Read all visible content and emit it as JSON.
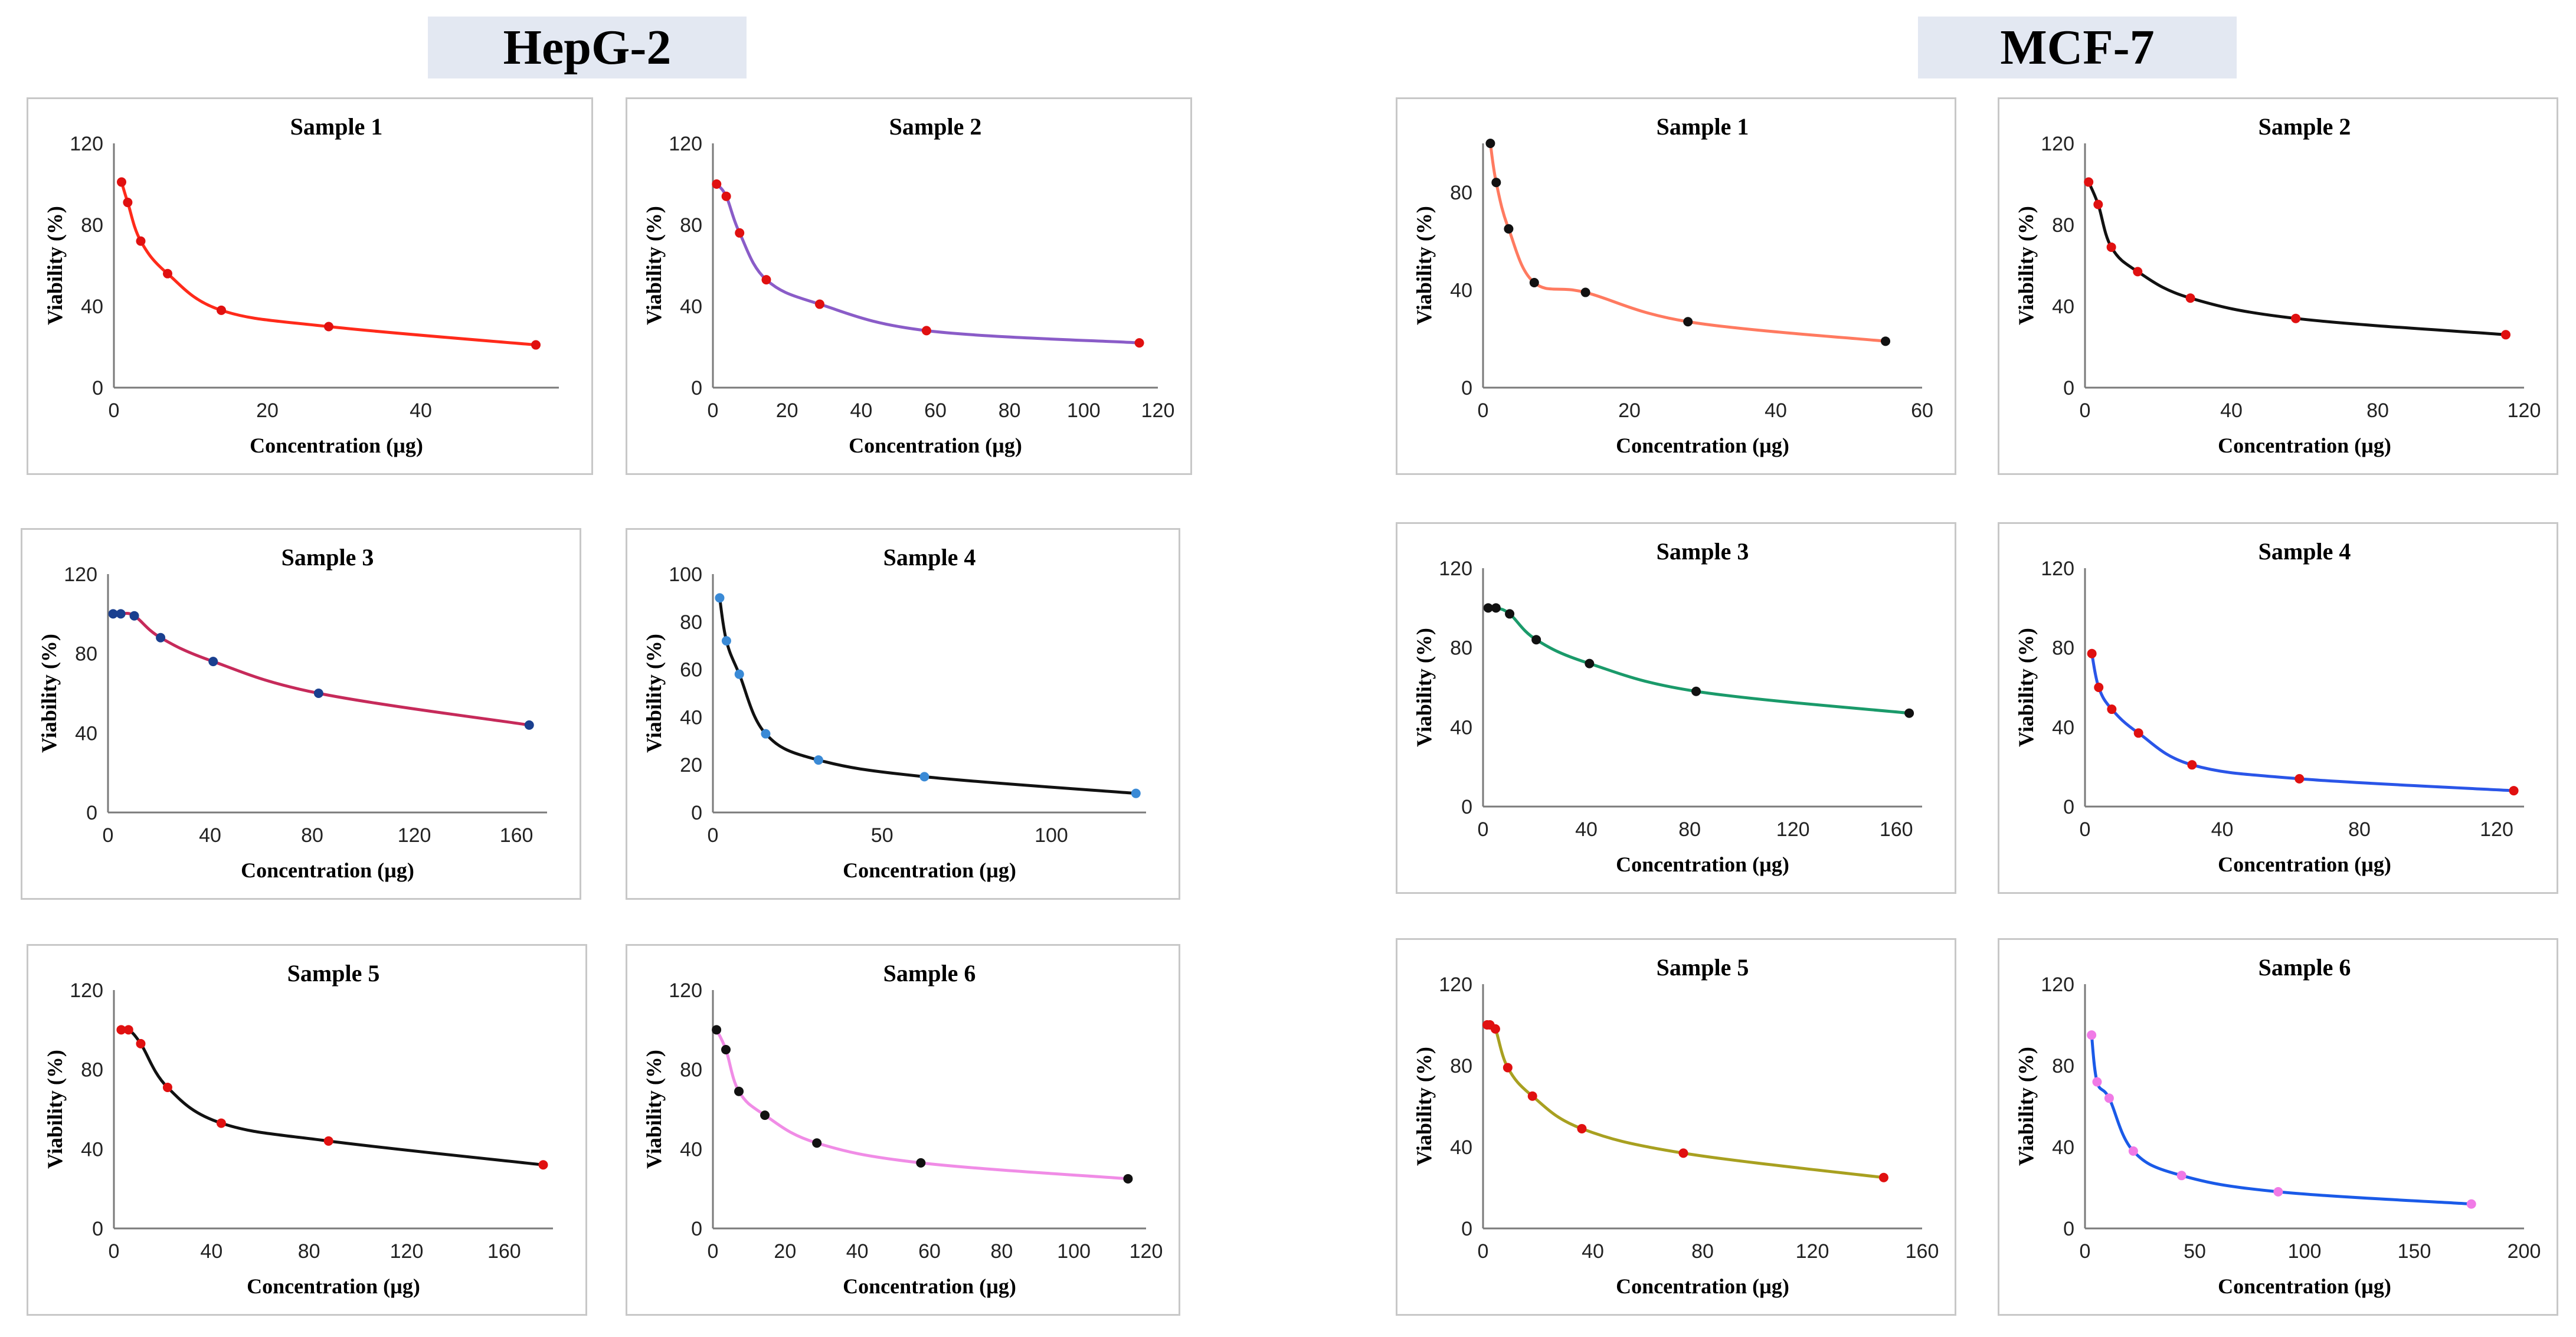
{
  "groups": {
    "left": "HepG-2",
    "right": "MCF-7"
  },
  "chart_data": [
    {
      "id": "h1",
      "type": "line",
      "group": "HepG-2",
      "title": "Sample 1",
      "xlabel": "Concentration (µg)",
      "ylabel": "Viability (%)",
      "xlim": [
        0,
        58
      ],
      "ylim": [
        0,
        120
      ],
      "xticks": [
        0,
        20,
        40
      ],
      "yticks": [
        0,
        40,
        80,
        120
      ],
      "x": [
        1,
        1.8,
        3.5,
        7,
        14,
        28,
        55
      ],
      "y": [
        101,
        91,
        72,
        56,
        38,
        30,
        21
      ],
      "line_color": "#ff2a1a",
      "marker_color": "#e01010"
    },
    {
      "id": "h2",
      "type": "line",
      "group": "HepG-2",
      "title": "Sample 2",
      "xlabel": "Concentration (µg)",
      "ylabel": "Viability (%)",
      "xlim": [
        0,
        120
      ],
      "ylim": [
        0,
        120
      ],
      "xticks": [
        0,
        20,
        40,
        60,
        80,
        100,
        120
      ],
      "yticks": [
        0,
        40,
        80,
        120
      ],
      "x": [
        1,
        3.6,
        7.2,
        14.4,
        28.8,
        57.6,
        115
      ],
      "y": [
        100,
        94,
        76,
        53,
        41,
        28,
        22
      ],
      "line_color": "#8a5cc8",
      "marker_color": "#e01010"
    },
    {
      "id": "h3",
      "type": "line",
      "group": "HepG-2",
      "title": "Sample 3",
      "xlabel": "Concentration (µg)",
      "ylabel": "Viability (%)",
      "xlim": [
        0,
        172
      ],
      "ylim": [
        0,
        120
      ],
      "xticks": [
        0,
        40,
        80,
        120,
        160
      ],
      "yticks": [
        0,
        40,
        80,
        120
      ],
      "x": [
        2,
        5,
        10.3,
        20.6,
        41.2,
        82.5,
        165
      ],
      "y": [
        100,
        100,
        99,
        88,
        76,
        60,
        44
      ],
      "line_color": "#c62a5a",
      "marker_color": "#1a3f8f"
    },
    {
      "id": "h4",
      "type": "line",
      "group": "HepG-2",
      "title": "Sample 4",
      "xlabel": "Concentration (µg)",
      "ylabel": "Viability (%)",
      "xlim": [
        0,
        128
      ],
      "ylim": [
        0,
        100
      ],
      "xticks": [
        0,
        50,
        100
      ],
      "yticks": [
        0,
        20,
        40,
        60,
        80,
        100
      ],
      "x": [
        2,
        4,
        7.8,
        15.6,
        31.2,
        62.5,
        125
      ],
      "y": [
        90,
        72,
        58,
        33,
        22,
        15,
        8
      ],
      "line_color": "#111111",
      "marker_color": "#3a8ad6"
    },
    {
      "id": "h5",
      "type": "line",
      "group": "HepG-2",
      "title": "Sample 5",
      "xlabel": "Concentration (µg)",
      "ylabel": "Viability (%)",
      "xlim": [
        0,
        180
      ],
      "ylim": [
        0,
        120
      ],
      "xticks": [
        0,
        40,
        80,
        120,
        160
      ],
      "yticks": [
        0,
        40,
        80,
        120
      ],
      "x": [
        3,
        6,
        11,
        22,
        44,
        88,
        176
      ],
      "y": [
        100,
        100,
        93,
        71,
        53,
        44,
        32
      ],
      "line_color": "#111111",
      "marker_color": "#e01010"
    },
    {
      "id": "h6",
      "type": "line",
      "group": "HepG-2",
      "title": "Sample 6",
      "xlabel": "Concentration (µg)",
      "ylabel": "Viability (%)",
      "xlim": [
        0,
        120
      ],
      "ylim": [
        0,
        120
      ],
      "xticks": [
        0,
        20,
        40,
        60,
        80,
        100,
        120
      ],
      "yticks": [
        0,
        40,
        80,
        120
      ],
      "x": [
        1,
        3.6,
        7.2,
        14.4,
        28.8,
        57.6,
        115
      ],
      "y": [
        100,
        90,
        69,
        57,
        43,
        33,
        25
      ],
      "line_color": "#f08ce6",
      "marker_color": "#111111"
    },
    {
      "id": "m1",
      "type": "line",
      "group": "MCF-7",
      "title": "Sample 1",
      "xlabel": "Concentration (µg)",
      "ylabel": "Viability (%)",
      "xlim": [
        0,
        60
      ],
      "ylim": [
        0,
        100
      ],
      "xticks": [
        0,
        20,
        40,
        60
      ],
      "yticks": [
        0,
        40,
        80
      ],
      "x": [
        1,
        1.8,
        3.5,
        7,
        14,
        28,
        55
      ],
      "y": [
        100,
        84,
        65,
        43,
        39,
        27,
        19
      ],
      "line_color": "#ff7a60",
      "marker_color": "#111111"
    },
    {
      "id": "m2",
      "type": "line",
      "group": "MCF-7",
      "title": "Sample 2",
      "xlabel": "Concentration (µg)",
      "ylabel": "Viability (%)",
      "xlim": [
        0,
        120
      ],
      "ylim": [
        0,
        120
      ],
      "xticks": [
        0,
        40,
        80,
        120
      ],
      "yticks": [
        0,
        40,
        80,
        120
      ],
      "x": [
        1,
        3.6,
        7.2,
        14.4,
        28.8,
        57.6,
        115
      ],
      "y": [
        101,
        90,
        69,
        57,
        44,
        34,
        26
      ],
      "line_color": "#111111",
      "marker_color": "#e01010"
    },
    {
      "id": "m3",
      "type": "line",
      "group": "MCF-7",
      "title": "Sample 3",
      "xlabel": "Concentration (µg)",
      "ylabel": "Viability (%)",
      "xlim": [
        0,
        170
      ],
      "ylim": [
        0,
        120
      ],
      "xticks": [
        0,
        40,
        80,
        120,
        160
      ],
      "yticks": [
        0,
        40,
        80,
        120
      ],
      "x": [
        2,
        5,
        10.3,
        20.6,
        41.2,
        82.5,
        165
      ],
      "y": [
        100,
        100,
        97,
        84,
        72,
        58,
        47
      ],
      "line_color": "#1a9a6a",
      "marker_color": "#111111"
    },
    {
      "id": "m4",
      "type": "line",
      "group": "MCF-7",
      "title": "Sample 4",
      "xlabel": "Concentration (µg)",
      "ylabel": "Viability (%)",
      "xlim": [
        0,
        128
      ],
      "ylim": [
        0,
        120
      ],
      "xticks": [
        0,
        40,
        80,
        120
      ],
      "yticks": [
        0,
        40,
        80,
        120
      ],
      "x": [
        2,
        4,
        7.8,
        15.6,
        31.2,
        62.5,
        125
      ],
      "y": [
        77,
        60,
        49,
        37,
        21,
        14,
        8
      ],
      "line_color": "#2a55e8",
      "marker_color": "#e01010"
    },
    {
      "id": "m5",
      "type": "line",
      "group": "MCF-7",
      "title": "Sample 5",
      "xlabel": "Concentration (µg)",
      "ylabel": "Viability (%)",
      "xlim": [
        0,
        160
      ],
      "ylim": [
        0,
        120
      ],
      "xticks": [
        0,
        40,
        80,
        120,
        160
      ],
      "yticks": [
        0,
        40,
        80,
        120
      ],
      "x": [
        1.5,
        2.5,
        4.5,
        9,
        18,
        36,
        73,
        146
      ],
      "y": [
        100,
        100,
        98,
        79,
        65,
        49,
        37,
        25
      ],
      "line_color": "#a8a020",
      "marker_color": "#e01010"
    },
    {
      "id": "m6",
      "type": "line",
      "group": "MCF-7",
      "title": "Sample 6",
      "xlabel": "Concentration (µg)",
      "ylabel": "Viability (%)",
      "xlim": [
        0,
        200
      ],
      "ylim": [
        0,
        120
      ],
      "xticks": [
        0,
        50,
        100,
        150,
        200
      ],
      "yticks": [
        0,
        40,
        80,
        120
      ],
      "x": [
        3,
        5.5,
        11,
        22,
        44,
        88,
        176
      ],
      "y": [
        95,
        72,
        64,
        38,
        26,
        18,
        12
      ],
      "line_color": "#1a5ae8",
      "marker_color": "#f07ae6"
    }
  ]
}
